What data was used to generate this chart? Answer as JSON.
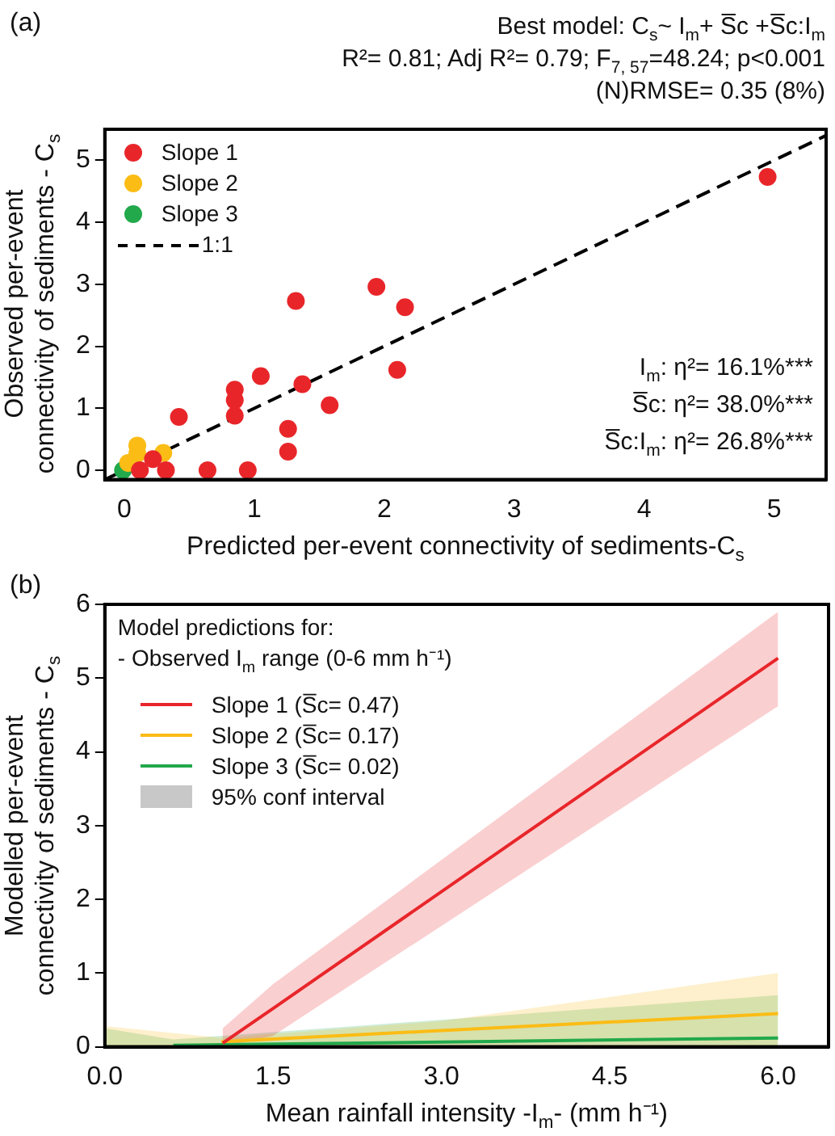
{
  "chart_data": [
    {
      "type": "scatter",
      "title": "(a)",
      "xlabel": "Predicted per-event connectivity of sediments-C$_{s}$",
      "ylabel": "Observed per-event\nconnectivity of sediments - C$_{s}$",
      "annotations": [
        "Best model: C$_{s}$~ I$_{m}$+ S̅c +S̅c:I$_{m}$",
        "R²= 0.81; Adj R²= 0.79; F$_{7, 57}$=48.24; p<0.001",
        "(N)RMSE= 0.35 (8%)",
        "I$_{m}$: η²= 16.1%***",
        "S̅c: η²= 38.0%***",
        "S̅c:I$_{m}$: η²= 26.8%***"
      ],
      "xlim": [
        -0.15,
        5.4
      ],
      "ylim": [
        -0.15,
        5.5
      ],
      "xticks": [
        0,
        1,
        2,
        3,
        4,
        5
      ],
      "yticks": [
        0,
        1,
        2,
        3,
        4,
        5
      ],
      "grid": false,
      "legend": "top left",
      "marker": "circle",
      "series": [
        {
          "name": "Slope 1",
          "color": "#e8262a",
          "x": [
            4.95,
            1.94,
            2.16,
            1.32,
            2.1,
            1.05,
            1.37,
            0.85,
            0.85,
            0.85,
            1.58,
            0.42,
            1.26,
            1.26,
            0.32,
            0.64,
            0.95,
            0.22,
            0.12
          ],
          "values": [
            4.73,
            2.96,
            2.63,
            2.73,
            1.62,
            1.52,
            1.39,
            1.3,
            1.13,
            0.88,
            1.05,
            0.86,
            0.67,
            0.3,
            0,
            0,
            0,
            0.18,
            0
          ]
        },
        {
          "name": "Slope 2",
          "color": "#fbbc15",
          "x": [
            0.1,
            0.1,
            0.3,
            0.03
          ],
          "values": [
            0.4,
            0.27,
            0.28,
            0.12
          ]
        },
        {
          "name": "Slope 3",
          "color": "#22a94b",
          "x": [
            -0.01
          ],
          "values": [
            0
          ]
        },
        {
          "name": "1:1",
          "type": "line",
          "color": "#000000",
          "line_style": "dashed",
          "marker": "none",
          "x": [
            -0.15,
            5.4
          ],
          "values": [
            -0.15,
            5.4
          ]
        }
      ]
    },
    {
      "type": "line",
      "title": "(b)",
      "xlabel": "Mean rainfall intensity -I$_{m}$- (mm h⁻¹)",
      "ylabel": "Modelled per-event\nconnectivity of sediments - C$_{s}$",
      "legend_title": "Model predictions for:\n- Observed I$_{m}$ range (0-6 mm h⁻¹)",
      "annotations": [
        "95% conf interval"
      ],
      "xlim": [
        0,
        6.45
      ],
      "ylim": [
        0,
        6
      ],
      "xticks": [
        {
          "value": 0,
          "label": "0.0"
        },
        {
          "value": 1.5,
          "label": "1.5"
        },
        {
          "value": 3,
          "label": "3.0"
        },
        {
          "value": 4.5,
          "label": "4.5"
        },
        {
          "value": 6,
          "label": "6.0"
        }
      ],
      "yticks": [
        0,
        1,
        2,
        3,
        4,
        5,
        6
      ],
      "grid": false,
      "legend": "top left",
      "marker": "none",
      "line_style": "solid",
      "series": [
        {
          "name": "Slope 1 (S̅c= 0.47)",
          "color": "#e8262a",
          "x": [
            1.05,
            1.5,
            6
          ],
          "values": [
            0.05,
            0.52,
            5.27
          ],
          "lower": [
            0,
            0.15,
            4.62
          ],
          "upper": [
            0.25,
            0.85,
            5.9
          ]
        },
        {
          "name": "Slope 2 (S̅c= 0.17)",
          "color": "#fbbc15",
          "x": [
            0,
            1.04,
            3,
            6
          ],
          "values": [
            null,
            0.07,
            0.22,
            0.45
          ],
          "lower": [
            0,
            0,
            0,
            0
          ],
          "upper": [
            0.28,
            0.12,
            0.35,
            1.0
          ]
        },
        {
          "name": "Slope 3 (S̅c= 0.02)",
          "color": "#22a94b",
          "x": [
            0,
            0.61,
            6
          ],
          "values": [
            null,
            0.02,
            0.12
          ],
          "lower": [
            0,
            0,
            0
          ],
          "upper": [
            0.25,
            0.1,
            0.7
          ]
        }
      ]
    }
  ]
}
